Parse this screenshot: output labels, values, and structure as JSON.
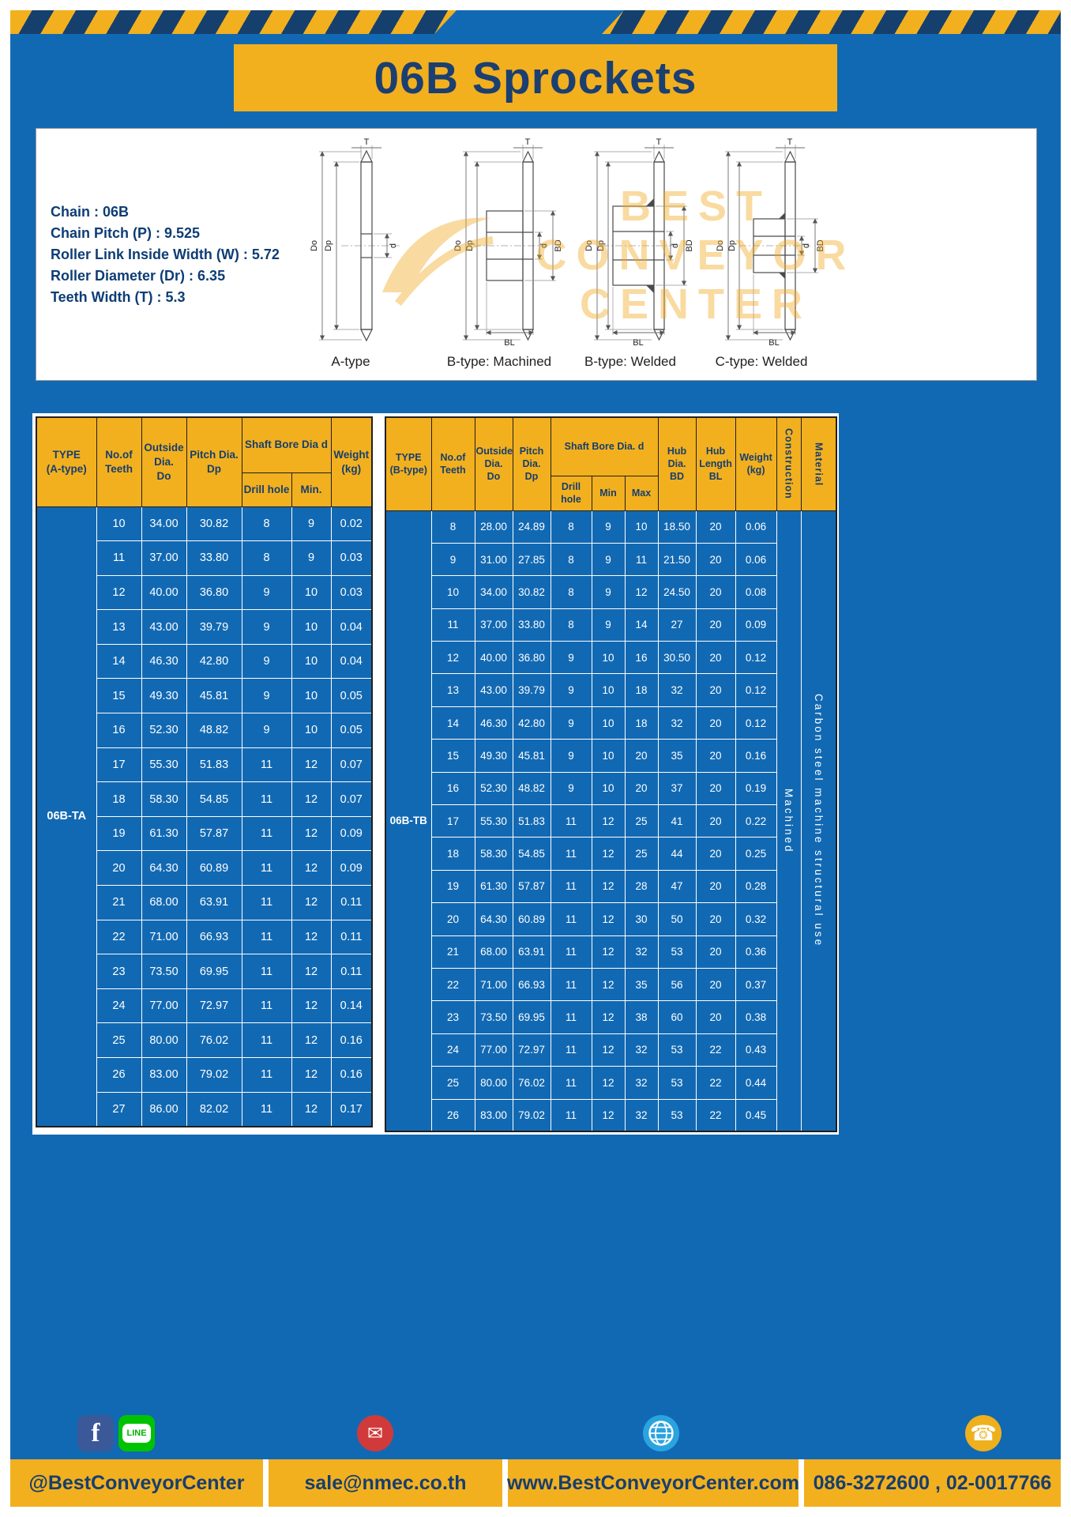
{
  "page": {
    "title": "06B Sprockets"
  },
  "specs": {
    "sep": ":",
    "items": [
      {
        "label": "Chain",
        "value": "06B"
      },
      {
        "label": "Chain Pitch (P)",
        "value": "9.525"
      },
      {
        "label": "Roller Link Inside Width (W)",
        "value": "5.72"
      },
      {
        "label": "Roller Diameter (Dr)",
        "value": "6.35"
      },
      {
        "label": "Teeth Width (T)",
        "value": "5.3"
      }
    ]
  },
  "diagram": {
    "captions": [
      "A-type",
      "B-type: Machined",
      "B-type: Welded",
      "C-type: Welded"
    ],
    "dims": {
      "T": "T",
      "Do": "Do",
      "Dp": "Dp",
      "d": "d",
      "BD": "BD",
      "BL": "BL"
    },
    "watermark": [
      "BEST",
      "CONVEYOR",
      "CENTER"
    ]
  },
  "table_a": {
    "headers": {
      "type": "TYPE\n(A-type)",
      "teeth": "No.of\nTeeth",
      "outside": "Outside\nDia.\nDo",
      "pitch": "Pitch Dia.\nDp",
      "shaft_bore": "Shaft Bore Dia d",
      "drill": "Drill hole",
      "min": "Min.",
      "weight": "Weight\n(kg)"
    },
    "type_value": "06B-TA",
    "rows": [
      [
        "10",
        "34.00",
        "30.82",
        "8",
        "9",
        "0.02"
      ],
      [
        "11",
        "37.00",
        "33.80",
        "8",
        "9",
        "0.03"
      ],
      [
        "12",
        "40.00",
        "36.80",
        "9",
        "10",
        "0.03"
      ],
      [
        "13",
        "43.00",
        "39.79",
        "9",
        "10",
        "0.04"
      ],
      [
        "14",
        "46.30",
        "42.80",
        "9",
        "10",
        "0.04"
      ],
      [
        "15",
        "49.30",
        "45.81",
        "9",
        "10",
        "0.05"
      ],
      [
        "16",
        "52.30",
        "48.82",
        "9",
        "10",
        "0.05"
      ],
      [
        "17",
        "55.30",
        "51.83",
        "11",
        "12",
        "0.07"
      ],
      [
        "18",
        "58.30",
        "54.85",
        "11",
        "12",
        "0.07"
      ],
      [
        "19",
        "61.30",
        "57.87",
        "11",
        "12",
        "0.09"
      ],
      [
        "20",
        "64.30",
        "60.89",
        "11",
        "12",
        "0.09"
      ],
      [
        "21",
        "68.00",
        "63.91",
        "11",
        "12",
        "0.11"
      ],
      [
        "22",
        "71.00",
        "66.93",
        "11",
        "12",
        "0.11"
      ],
      [
        "23",
        "73.50",
        "69.95",
        "11",
        "12",
        "0.11"
      ],
      [
        "24",
        "77.00",
        "72.97",
        "11",
        "12",
        "0.14"
      ],
      [
        "25",
        "80.00",
        "76.02",
        "11",
        "12",
        "0.16"
      ],
      [
        "26",
        "83.00",
        "79.02",
        "11",
        "12",
        "0.16"
      ],
      [
        "27",
        "86.00",
        "82.02",
        "11",
        "12",
        "0.17"
      ]
    ]
  },
  "table_b": {
    "headers": {
      "type": "TYPE\n(B-type)",
      "teeth": "No.of\nTeeth",
      "outside": "Outside\nDia.\nDo",
      "pitch": "Pitch\nDia.\nDp",
      "shaft_bore": "Shaft Bore Dia.  d",
      "drill": "Drill hole",
      "min": "Min",
      "max": "Max",
      "hub_dia": "Hub\nDia.\nBD",
      "hub_len": "Hub\nLength\nBL",
      "weight": "Weight\n(kg)",
      "construction": "Construction",
      "material": "Material"
    },
    "type_value": "06B-TB",
    "construction_value": "Machined",
    "material_value": "Carbon steel machine structural use",
    "rows": [
      [
        "8",
        "28.00",
        "24.89",
        "8",
        "9",
        "10",
        "18.50",
        "20",
        "0.06"
      ],
      [
        "9",
        "31.00",
        "27.85",
        "8",
        "9",
        "11",
        "21.50",
        "20",
        "0.06"
      ],
      [
        "10",
        "34.00",
        "30.82",
        "8",
        "9",
        "12",
        "24.50",
        "20",
        "0.08"
      ],
      [
        "11",
        "37.00",
        "33.80",
        "8",
        "9",
        "14",
        "27",
        "20",
        "0.09"
      ],
      [
        "12",
        "40.00",
        "36.80",
        "9",
        "10",
        "16",
        "30.50",
        "20",
        "0.12"
      ],
      [
        "13",
        "43.00",
        "39.79",
        "9",
        "10",
        "18",
        "32",
        "20",
        "0.12"
      ],
      [
        "14",
        "46.30",
        "42.80",
        "9",
        "10",
        "18",
        "32",
        "20",
        "0.12"
      ],
      [
        "15",
        "49.30",
        "45.81",
        "9",
        "10",
        "20",
        "35",
        "20",
        "0.16"
      ],
      [
        "16",
        "52.30",
        "48.82",
        "9",
        "10",
        "20",
        "37",
        "20",
        "0.19"
      ],
      [
        "17",
        "55.30",
        "51.83",
        "11",
        "12",
        "25",
        "41",
        "20",
        "0.22"
      ],
      [
        "18",
        "58.30",
        "54.85",
        "11",
        "12",
        "25",
        "44",
        "20",
        "0.25"
      ],
      [
        "19",
        "61.30",
        "57.87",
        "11",
        "12",
        "28",
        "47",
        "20",
        "0.28"
      ],
      [
        "20",
        "64.30",
        "60.89",
        "11",
        "12",
        "30",
        "50",
        "20",
        "0.32"
      ],
      [
        "21",
        "68.00",
        "63.91",
        "11",
        "12",
        "32",
        "53",
        "20",
        "0.36"
      ],
      [
        "22",
        "71.00",
        "66.93",
        "11",
        "12",
        "35",
        "56",
        "20",
        "0.37"
      ],
      [
        "23",
        "73.50",
        "69.95",
        "11",
        "12",
        "38",
        "60",
        "20",
        "0.38"
      ],
      [
        "24",
        "77.00",
        "72.97",
        "11",
        "12",
        "32",
        "53",
        "22",
        "0.43"
      ],
      [
        "25",
        "80.00",
        "76.02",
        "11",
        "12",
        "32",
        "53",
        "22",
        "0.44"
      ],
      [
        "26",
        "83.00",
        "79.02",
        "11",
        "12",
        "32",
        "53",
        "22",
        "0.45"
      ]
    ]
  },
  "footer": {
    "social": "@BestConveyorCenter",
    "email": "sale@nmec.co.th",
    "website": "www.BestConveyorCenter.com",
    "phone": "086-3272600 , 02-0017766",
    "facebook_letter": "f",
    "line_label": "LINE"
  },
  "icons": {
    "mail_glyph": "✉",
    "phone_glyph": "☎"
  },
  "colors": {
    "page_blue": "#1269b3",
    "accent_yellow": "#f2b01f",
    "navy": "#173e6e"
  }
}
